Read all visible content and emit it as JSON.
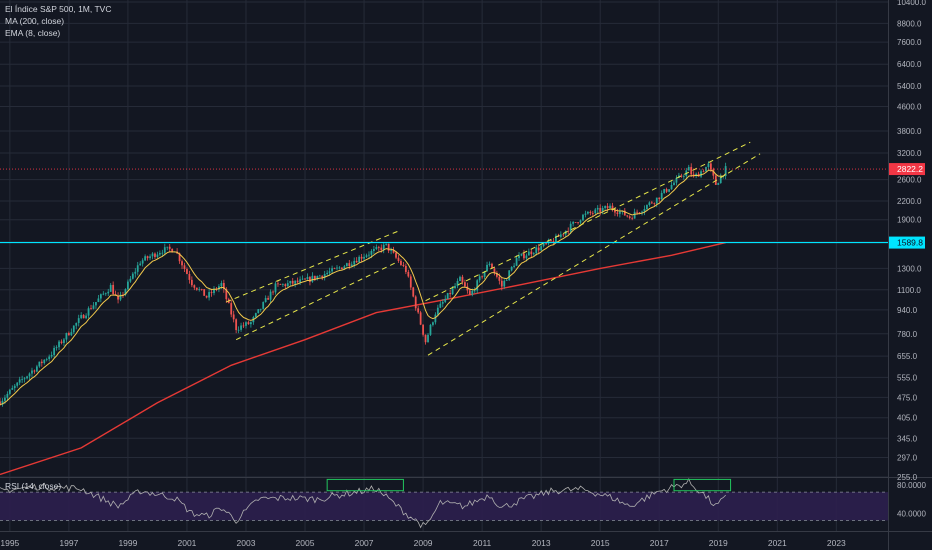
{
  "header": {
    "title": "El Índice S&P 500, 1M, TVC",
    "ma_label": "MA (200, close)",
    "ema_label": "EMA (8, close)"
  },
  "rsi": {
    "label": "RSI (14, close)",
    "upper_label": "80.0000",
    "lower_label": "40.0000",
    "upper": 70,
    "lower": 30,
    "ticks": [
      80,
      40
    ]
  },
  "colors": {
    "background": "#131722",
    "grid": "#262b38",
    "up": "#26a69a",
    "down": "#ef5350",
    "ma": "#e53935",
    "ema": "#f2c94c",
    "channel": "#e6e64a",
    "level": "#00e5ff",
    "last_price": "#f23645",
    "rsi_line": "#b0b0b0",
    "rsi_band": "#2c1f4e",
    "box": "#22c55e"
  },
  "levels": {
    "last_price": 2822.2,
    "last_price_label": "2822.2",
    "horizontal": 1589.8,
    "horizontal_label": "1589.8"
  },
  "chart_data": {
    "type": "candlestick",
    "title": "El Índice S&P 500, 1M, TVC",
    "y_scale": "log",
    "ylim": [
      255,
      10400
    ],
    "xlim": [
      "1994-09",
      "2024-10"
    ],
    "y_ticks": [
      {
        "value": 10400,
        "label": "10400.0"
      },
      {
        "value": 8800,
        "label": "8800.0"
      },
      {
        "value": 7600,
        "label": "7600.0"
      },
      {
        "value": 6400,
        "label": "6400.0"
      },
      {
        "value": 5400,
        "label": "5400.0"
      },
      {
        "value": 4600,
        "label": "4600.0"
      },
      {
        "value": 3800,
        "label": "3800.0"
      },
      {
        "value": 3200,
        "label": "3200.0"
      },
      {
        "value": 2600,
        "label": "2600.0"
      },
      {
        "value": 2200,
        "label": "2200.0"
      },
      {
        "value": 1900,
        "label": "1900.0"
      },
      {
        "value": 1600,
        "label": "1600.0"
      },
      {
        "value": 1300,
        "label": "1300.0"
      },
      {
        "value": 1100,
        "label": "1100.0"
      },
      {
        "value": 940,
        "label": "940.0"
      },
      {
        "value": 780,
        "label": "780.0"
      },
      {
        "value": 655,
        "label": "655.0"
      },
      {
        "value": 555,
        "label": "555.0"
      },
      {
        "value": 475,
        "label": "475.0"
      },
      {
        "value": 405,
        "label": "405.0"
      },
      {
        "value": 345,
        "label": "345.0"
      },
      {
        "value": 297,
        "label": "297.0"
      },
      {
        "value": 255,
        "label": "255.0"
      }
    ],
    "x_ticks": [
      {
        "year": 1995,
        "label": "1995"
      },
      {
        "year": 1997,
        "label": "1997"
      },
      {
        "year": 1999,
        "label": "1999"
      },
      {
        "year": 2001,
        "label": "2001"
      },
      {
        "year": 2003,
        "label": "2003"
      },
      {
        "year": 2005,
        "label": "2005"
      },
      {
        "year": 2007,
        "label": "2007"
      },
      {
        "year": 2009,
        "label": "2009"
      },
      {
        "year": 2011,
        "label": "2011"
      },
      {
        "year": 2013,
        "label": "2013"
      },
      {
        "year": 2015,
        "label": "2015"
      },
      {
        "year": 2017,
        "label": "2017"
      },
      {
        "year": 2019,
        "label": "2019"
      },
      {
        "year": 2021,
        "label": "2021"
      },
      {
        "year": 2023,
        "label": "2023"
      }
    ],
    "price_path": [
      {
        "date": "1994-09",
        "close": 460
      },
      {
        "date": "1995-06",
        "close": 545
      },
      {
        "date": "1996-06",
        "close": 670
      },
      {
        "date": "1997-06",
        "close": 885
      },
      {
        "date": "1998-06",
        "close": 1130
      },
      {
        "date": "1998-09",
        "close": 1000
      },
      {
        "date": "1999-06",
        "close": 1370
      },
      {
        "date": "2000-03",
        "close": 1500
      },
      {
        "date": "2000-08",
        "close": 1510
      },
      {
        "date": "2001-03",
        "close": 1160
      },
      {
        "date": "2001-09",
        "close": 1040
      },
      {
        "date": "2002-03",
        "close": 1150
      },
      {
        "date": "2002-09",
        "close": 815
      },
      {
        "date": "2003-03",
        "close": 850
      },
      {
        "date": "2004-01",
        "close": 1130
      },
      {
        "date": "2005-01",
        "close": 1180
      },
      {
        "date": "2006-01",
        "close": 1280
      },
      {
        "date": "2007-01",
        "close": 1440
      },
      {
        "date": "2007-10",
        "close": 1550
      },
      {
        "date": "2008-06",
        "close": 1280
      },
      {
        "date": "2008-10",
        "close": 970
      },
      {
        "date": "2009-02",
        "close": 735
      },
      {
        "date": "2009-06",
        "close": 920
      },
      {
        "date": "2010-04",
        "close": 1190
      },
      {
        "date": "2010-08",
        "close": 1050
      },
      {
        "date": "2011-04",
        "close": 1360
      },
      {
        "date": "2011-09",
        "close": 1130
      },
      {
        "date": "2012-03",
        "close": 1400
      },
      {
        "date": "2013-06",
        "close": 1610
      },
      {
        "date": "2014-06",
        "close": 1960
      },
      {
        "date": "2015-05",
        "close": 2100
      },
      {
        "date": "2016-01",
        "close": 1940
      },
      {
        "date": "2016-12",
        "close": 2240
      },
      {
        "date": "2018-01",
        "close": 2820
      },
      {
        "date": "2018-03",
        "close": 2640
      },
      {
        "date": "2018-09",
        "close": 2910
      },
      {
        "date": "2018-12",
        "close": 2510
      },
      {
        "date": "2019-04",
        "close": 2822
      }
    ],
    "ma200": [
      {
        "date": "1994-09",
        "value": 260
      },
      {
        "date": "1997-06",
        "value": 320
      },
      {
        "date": "2000-01",
        "value": 455
      },
      {
        "date": "2002-07",
        "value": 610
      },
      {
        "date": "2005-01",
        "value": 745
      },
      {
        "date": "2007-06",
        "value": 920
      },
      {
        "date": "2010-01",
        "value": 1030
      },
      {
        "date": "2012-06",
        "value": 1150
      },
      {
        "date": "2015-01",
        "value": 1300
      },
      {
        "date": "2017-06",
        "value": 1440
      },
      {
        "date": "2019-04",
        "value": 1590
      }
    ],
    "channels": [
      {
        "from": {
          "date": "2002-09",
          "value": 745
        },
        "to": {
          "date": "2008-02",
          "value": 1360
        }
      },
      {
        "from": {
          "date": "2002-05",
          "value": 1000
        },
        "to": {
          "date": "2008-03",
          "value": 1740
        }
      },
      {
        "from": {
          "date": "2009-03",
          "value": 660
        },
        "to": {
          "date": "2020-06",
          "value": 3180
        }
      },
      {
        "from": {
          "date": "2009-02",
          "value": 1010
        },
        "to": {
          "date": "2020-02",
          "value": 3480
        }
      }
    ],
    "rsi_highlights": [
      {
        "from": "2005-10",
        "to": "2008-05"
      },
      {
        "from": "2017-07",
        "to": "2019-06"
      }
    ],
    "rsi_ylim": [
      15,
      90
    ],
    "rsi_values": [
      {
        "date": "1994-09",
        "value": 72
      },
      {
        "date": "1996-01",
        "value": 78
      },
      {
        "date": "1997-06",
        "value": 75
      },
      {
        "date": "1998-09",
        "value": 50
      },
      {
        "date": "1999-06",
        "value": 72
      },
      {
        "date": "2000-08",
        "value": 62
      },
      {
        "date": "2001-03",
        "value": 40
      },
      {
        "date": "2001-09",
        "value": 36
      },
      {
        "date": "2002-03",
        "value": 48
      },
      {
        "date": "2002-09",
        "value": 30
      },
      {
        "date": "2003-06",
        "value": 60
      },
      {
        "date": "2004-06",
        "value": 62
      },
      {
        "date": "2005-06",
        "value": 60
      },
      {
        "date": "2006-06",
        "value": 68
      },
      {
        "date": "2007-06",
        "value": 75
      },
      {
        "date": "2008-06",
        "value": 40
      },
      {
        "date": "2009-02",
        "value": 20
      },
      {
        "date": "2009-08",
        "value": 55
      },
      {
        "date": "2010-06",
        "value": 50
      },
      {
        "date": "2011-04",
        "value": 66
      },
      {
        "date": "2011-09",
        "value": 48
      },
      {
        "date": "2012-06",
        "value": 60
      },
      {
        "date": "2013-06",
        "value": 72
      },
      {
        "date": "2014-06",
        "value": 74
      },
      {
        "date": "2015-06",
        "value": 62
      },
      {
        "date": "2016-01",
        "value": 50
      },
      {
        "date": "2016-12",
        "value": 70
      },
      {
        "date": "2018-01",
        "value": 84
      },
      {
        "date": "2018-06",
        "value": 70
      },
      {
        "date": "2018-12",
        "value": 50
      },
      {
        "date": "2019-04",
        "value": 62
      }
    ]
  }
}
